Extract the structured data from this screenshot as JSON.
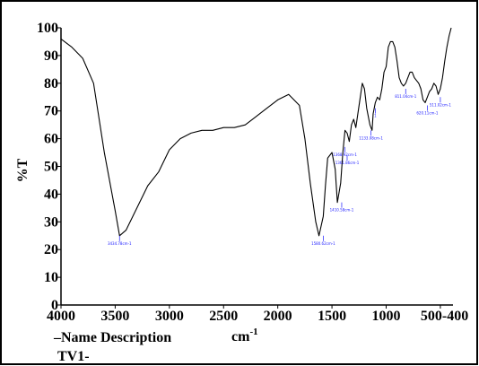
{
  "chart_data": {
    "type": "line",
    "ylabel": "%T",
    "xlabel": "cm",
    "xlabel_superscript": "-1",
    "xlim": [
      4000,
      400
    ],
    "ylim": [
      0,
      100
    ],
    "x_ticks": [
      {
        "value": 4000,
        "label": "4000"
      },
      {
        "value": 3500,
        "label": "3500"
      },
      {
        "value": 3000,
        "label": "3000"
      },
      {
        "value": 2500,
        "label": "2500"
      },
      {
        "value": 2000,
        "label": "2000"
      },
      {
        "value": 1500,
        "label": "1500"
      },
      {
        "value": 1000,
        "label": "1000"
      },
      {
        "value": 500,
        "label": "500-400"
      }
    ],
    "y_ticks": [
      0,
      10,
      20,
      30,
      40,
      50,
      60,
      70,
      80,
      90,
      100
    ],
    "x": [
      4000,
      3900,
      3800,
      3700,
      3600,
      3500,
      3460,
      3400,
      3300,
      3200,
      3100,
      3000,
      2900,
      2800,
      2700,
      2600,
      2500,
      2400,
      2300,
      2200,
      2100,
      2000,
      1900,
      1800,
      1750,
      1700,
      1650,
      1620,
      1580,
      1560,
      1540,
      1500,
      1470,
      1450,
      1420,
      1400,
      1380,
      1360,
      1340,
      1320,
      1300,
      1280,
      1250,
      1220,
      1200,
      1180,
      1150,
      1130,
      1120,
      1100,
      1080,
      1060,
      1040,
      1020,
      1000,
      980,
      960,
      940,
      920,
      900,
      880,
      860,
      840,
      820,
      800,
      780,
      760,
      740,
      720,
      700,
      680,
      660,
      640,
      620,
      600,
      580,
      560,
      540,
      520,
      500,
      480,
      460,
      440,
      420,
      400
    ],
    "series": [
      {
        "values": [
          96,
          93,
          89,
          80,
          55,
          34,
          25,
          27,
          35,
          43,
          48,
          56,
          60,
          62,
          63,
          63,
          64,
          64,
          65,
          68,
          71,
          74,
          76,
          72,
          60,
          44,
          30,
          25,
          32,
          43,
          53,
          55,
          49,
          37,
          44,
          55,
          63,
          62,
          59,
          65,
          67,
          64,
          72,
          80,
          78,
          71,
          65,
          63,
          69,
          73,
          75,
          74,
          78,
          84,
          86,
          93,
          95,
          95,
          93,
          88,
          82,
          80,
          79,
          80,
          82,
          84,
          84,
          82,
          81,
          80,
          78,
          74,
          73,
          75,
          77,
          78,
          80,
          79,
          76,
          78,
          82,
          88,
          93,
          97,
          100
        ]
      }
    ],
    "annotations": [
      {
        "x": 3460,
        "y": 25,
        "text": "3434.78cm-1"
      },
      {
        "x": 1580,
        "y": 25,
        "text": "1580.62cm-1"
      },
      {
        "x": 1410,
        "y": 37,
        "text": "1410.58cm-1"
      },
      {
        "x": 1360,
        "y": 54,
        "text": "1361.86cm-1"
      },
      {
        "x": 1380,
        "y": 57,
        "text": "1368.92cm-1"
      },
      {
        "x": 1140,
        "y": 63,
        "text": "1133.08cm-1"
      },
      {
        "x": 1100,
        "y": 71,
        "text": "1"
      },
      {
        "x": 820,
        "y": 78,
        "text": "811.04cm-1"
      },
      {
        "x": 620,
        "y": 72,
        "text": "620.11cm-1"
      },
      {
        "x": 500,
        "y": 75,
        "text": "511.02cm-1"
      }
    ]
  },
  "legend": {
    "line1": "–Name Description",
    "line2": "TV1-"
  }
}
